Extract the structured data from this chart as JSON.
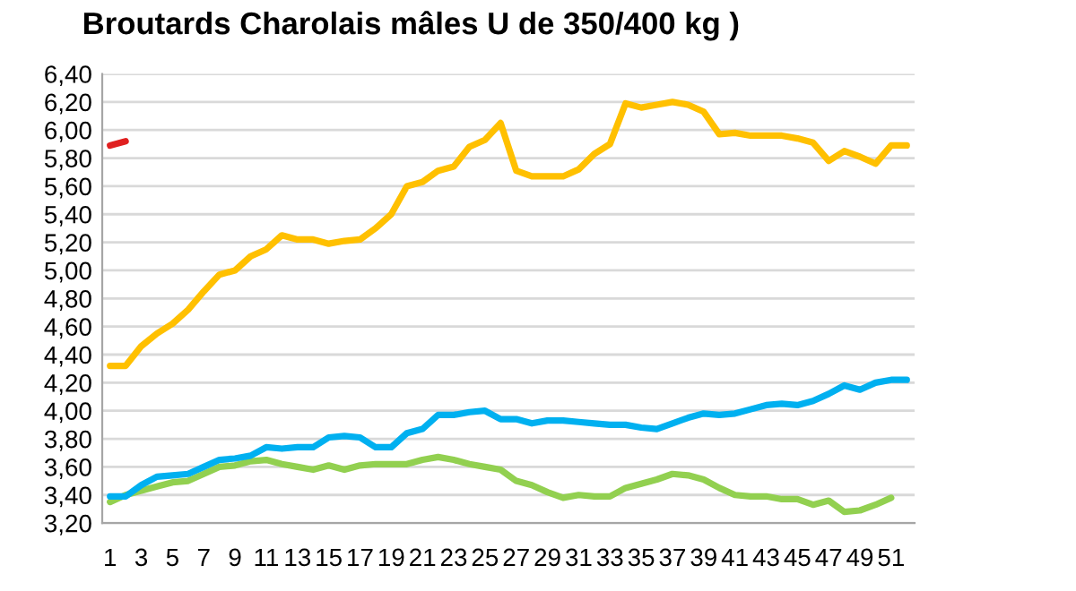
{
  "chart_data": {
    "type": "line",
    "title": "Broutards Charolais mâles U de 350/400 kg )",
    "x": [
      1,
      2,
      3,
      4,
      5,
      6,
      7,
      8,
      9,
      10,
      11,
      12,
      13,
      14,
      15,
      16,
      17,
      18,
      19,
      20,
      21,
      22,
      23,
      24,
      25,
      26,
      27,
      28,
      29,
      30,
      31,
      32,
      33,
      34,
      35,
      36,
      37,
      38,
      39,
      40,
      41,
      42,
      43,
      44,
      45,
      46,
      47,
      48,
      49,
      50,
      51,
      52
    ],
    "series": [
      {
        "color": "#92d050",
        "values": [
          3.35,
          3.4,
          3.43,
          3.46,
          3.49,
          3.5,
          3.55,
          3.6,
          3.61,
          3.64,
          3.65,
          3.62,
          3.6,
          3.58,
          3.61,
          3.58,
          3.61,
          3.62,
          3.62,
          3.62,
          3.65,
          3.67,
          3.65,
          3.62,
          3.6,
          3.58,
          3.5,
          3.47,
          3.42,
          3.38,
          3.4,
          3.39,
          3.39,
          3.45,
          3.48,
          3.51,
          3.55,
          3.54,
          3.51,
          3.45,
          3.4,
          3.39,
          3.39,
          3.37,
          3.37,
          3.33,
          3.36,
          3.28,
          3.29,
          3.33,
          3.38,
          null
        ]
      },
      {
        "color": "#00b0f0",
        "values": [
          3.39,
          3.39,
          3.47,
          3.53,
          3.54,
          3.55,
          3.6,
          3.65,
          3.66,
          3.68,
          3.74,
          3.73,
          3.74,
          3.74,
          3.81,
          3.82,
          3.81,
          3.74,
          3.74,
          3.84,
          3.87,
          3.97,
          3.97,
          3.99,
          4.0,
          3.94,
          3.94,
          3.91,
          3.93,
          3.93,
          3.92,
          3.91,
          3.9,
          3.9,
          3.88,
          3.87,
          3.91,
          3.95,
          3.98,
          3.97,
          3.98,
          4.01,
          4.04,
          4.05,
          4.04,
          4.07,
          4.12,
          4.18,
          4.15,
          4.2,
          4.22,
          4.22
        ]
      },
      {
        "color": "#ffc000",
        "values": [
          4.32,
          4.32,
          4.46,
          4.55,
          4.62,
          4.72,
          4.85,
          4.97,
          5.0,
          5.1,
          5.15,
          5.25,
          5.22,
          5.22,
          5.19,
          5.21,
          5.22,
          5.3,
          5.4,
          5.6,
          5.63,
          5.71,
          5.74,
          5.88,
          5.93,
          6.05,
          5.71,
          5.67,
          5.67,
          5.67,
          5.72,
          5.83,
          5.9,
          6.19,
          6.16,
          6.18,
          6.2,
          6.18,
          6.13,
          5.97,
          5.98,
          5.96,
          5.96,
          5.96,
          5.94,
          5.91,
          5.78,
          5.85,
          5.81,
          5.76,
          5.89,
          5.89
        ]
      },
      {
        "color": "#e02020",
        "values": [
          5.89,
          5.92,
          null,
          null,
          null,
          null,
          null,
          null,
          null,
          null,
          null,
          null,
          null,
          null,
          null,
          null,
          null,
          null,
          null,
          null,
          null,
          null,
          null,
          null,
          null,
          null,
          null,
          null,
          null,
          null,
          null,
          null,
          null,
          null,
          null,
          null,
          null,
          null,
          null,
          null,
          null,
          null,
          null,
          null,
          null,
          null,
          null,
          null,
          null,
          null,
          null,
          null
        ]
      }
    ],
    "xlim": [
      0.5,
      52.5
    ],
    "xticks": [
      1,
      3,
      5,
      7,
      9,
      11,
      13,
      15,
      17,
      19,
      21,
      23,
      25,
      27,
      29,
      31,
      33,
      35,
      37,
      39,
      41,
      43,
      45,
      47,
      49,
      51
    ],
    "ylim": [
      3.2,
      6.4
    ],
    "yticks": [
      {
        "value": 3.2,
        "label": "3,20"
      },
      {
        "value": 3.4,
        "label": "3,40"
      },
      {
        "value": 3.6,
        "label": "3,60"
      },
      {
        "value": 3.8,
        "label": "3,80"
      },
      {
        "value": 4.0,
        "label": "4,00"
      },
      {
        "value": 4.2,
        "label": "4,20"
      },
      {
        "value": 4.4,
        "label": "4,40"
      },
      {
        "value": 4.6,
        "label": "4,60"
      },
      {
        "value": 4.8,
        "label": "4,80"
      },
      {
        "value": 5.0,
        "label": "5,00"
      },
      {
        "value": 5.2,
        "label": "5,20"
      },
      {
        "value": 5.4,
        "label": "5,40"
      },
      {
        "value": 5.6,
        "label": "5,60"
      },
      {
        "value": 5.8,
        "label": "5,80"
      },
      {
        "value": 6.0,
        "label": "6,00"
      },
      {
        "value": 6.2,
        "label": "6,20"
      },
      {
        "value": 6.4,
        "label": "6,40"
      }
    ],
    "grid": "y",
    "marker": "none",
    "line_style": "solid"
  }
}
